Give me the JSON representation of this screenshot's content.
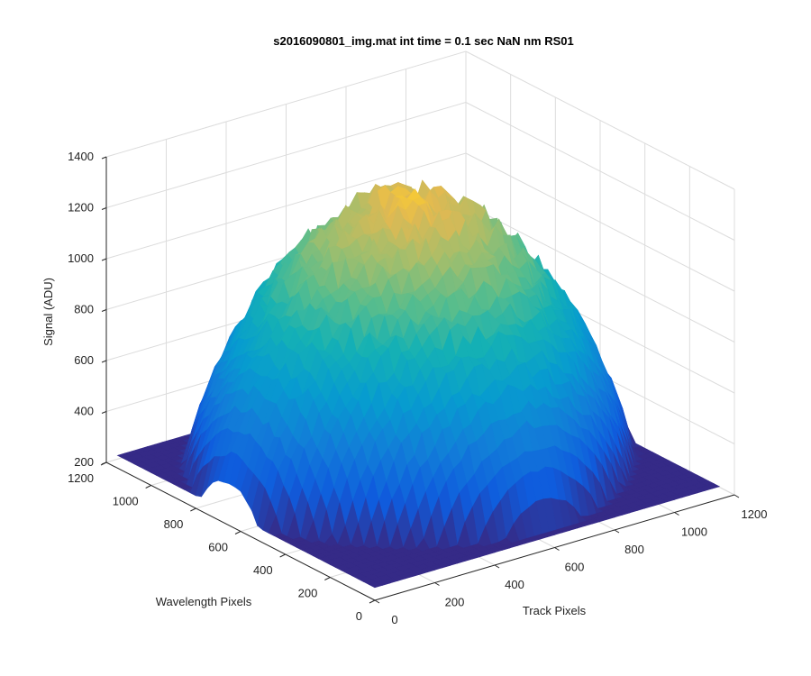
{
  "chart_data": {
    "type": "surface",
    "title": "s2016090801_img.mat int time = 0.1 sec  NaN nm RS01",
    "xlabel": "Track Pixels",
    "ylabel": "Wavelength Pixels",
    "zlabel": "Signal (ADU)",
    "xlim": [
      0,
      1200
    ],
    "ylim": [
      0,
      1200
    ],
    "zlim": [
      200,
      1400
    ],
    "xticks": [
      "0",
      "200",
      "400",
      "600",
      "800",
      "1000",
      "1200"
    ],
    "yticks": [
      "0",
      "200",
      "400",
      "600",
      "800",
      "1000",
      "1200"
    ],
    "zticks": [
      "200",
      "400",
      "600",
      "800",
      "1000",
      "1200",
      "1400"
    ],
    "grid": true,
    "colormap": "parula",
    "colors": {
      "low": "#352a87",
      "mid_low": "#0f5cdd",
      "mid": "#1aa8cf",
      "mid_high": "#7fc05e",
      "high": "#fbbf3a",
      "top": "#f9fb0e"
    },
    "surface_profile": {
      "track_pixels": [
        0,
        100,
        200,
        300,
        400,
        500,
        600,
        700,
        800,
        900,
        1000,
        1100,
        1150
      ],
      "wavelength_pixels": [
        0,
        100,
        200,
        300,
        400,
        500,
        600,
        700,
        800,
        900,
        1000,
        1100,
        1150
      ],
      "edge_signal": 250,
      "peak_signal": 1270,
      "peak_track_pixel": 600,
      "peak_wavelength_pixel": 650
    }
  }
}
